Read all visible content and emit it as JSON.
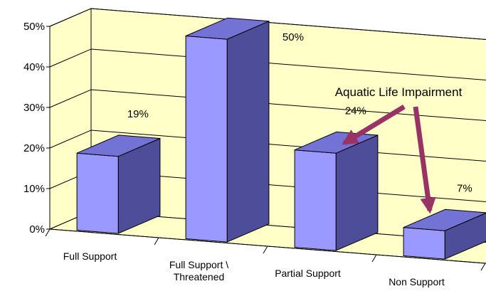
{
  "chart_data": {
    "type": "bar",
    "style": "3d-column",
    "categories": [
      "Full Support",
      "Full Support \\ Threatened",
      "Partial Support",
      "Non Support"
    ],
    "category_label_lines": [
      [
        "Full Support"
      ],
      [
        "Full Support \\",
        "Threatened"
      ],
      [
        "Partial Support"
      ],
      [
        "Non Support"
      ]
    ],
    "values": [
      19,
      50,
      24,
      7
    ],
    "value_labels": [
      "19%",
      "50%",
      "24%",
      "7%"
    ],
    "ylim": [
      0,
      50
    ],
    "yticks": [
      0,
      10,
      20,
      30,
      40,
      50
    ],
    "ytick_labels": [
      "0%",
      "10%",
      "20%",
      "30%",
      "40%",
      "50%"
    ],
    "grid": true,
    "annotations": [
      {
        "text": "Aquatic Life Impairment",
        "points_to": [
          "Partial Support",
          "Non Support"
        ]
      }
    ]
  },
  "colors": {
    "wall": "#ffffc8",
    "floor": "#ffffc8",
    "gridline": "#000000",
    "bar_front": "#9999ff",
    "bar_side": "#4d4d99",
    "bar_top": "#7373d6",
    "arrow": "#993366"
  }
}
